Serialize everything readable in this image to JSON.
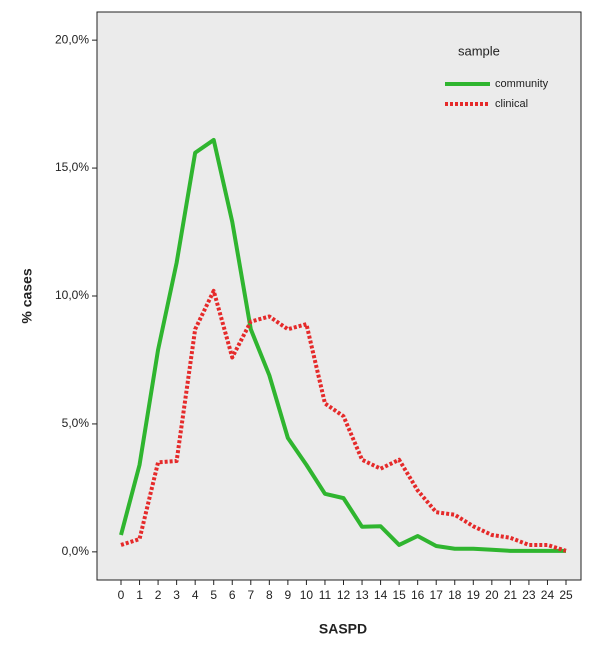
{
  "chart_data": {
    "type": "line",
    "x_label": "SASPD",
    "y_label": "% cases",
    "categories": [
      "0",
      "1",
      "2",
      "3",
      "4",
      "5",
      "6",
      "7",
      "8",
      "9",
      "10",
      "11",
      "12",
      "13",
      "14",
      "15",
      "16",
      "17",
      "18",
      "19",
      "20",
      "21",
      "23",
      "24",
      "25"
    ],
    "series": [
      {
        "name": "community",
        "color": "#2fb52f",
        "dash": false,
        "values": [
          0.66,
          3.4,
          7.9,
          11.3,
          15.6,
          16.1,
          12.9,
          8.7,
          6.9,
          4.45,
          3.4,
          2.27,
          2.1,
          0.98,
          1.0,
          0.27,
          0.62,
          0.23,
          0.12,
          0.12,
          0.08,
          0.04,
          0.04,
          0.04,
          0.04
        ]
      },
      {
        "name": "clinical",
        "color": "#e52a2a",
        "dash": true,
        "values": [
          0.27,
          0.5,
          3.5,
          3.55,
          8.7,
          10.2,
          7.6,
          9.0,
          9.2,
          8.7,
          8.9,
          5.8,
          5.3,
          3.6,
          3.25,
          3.6,
          2.4,
          1.55,
          1.45,
          1.0,
          0.66,
          0.55,
          0.27,
          0.27,
          0.04
        ]
      }
    ],
    "legend_title": "sample",
    "legend_position": "upper right",
    "ylim": [
      -1.1,
      21.1
    ],
    "yticks": [
      {
        "value": 0,
        "label": "0,0%"
      },
      {
        "value": 5,
        "label": "5,0%"
      },
      {
        "value": 10,
        "label": "10,0%"
      },
      {
        "value": 15,
        "label": "15,0%"
      },
      {
        "value": 20,
        "label": "20,0%"
      }
    ]
  }
}
